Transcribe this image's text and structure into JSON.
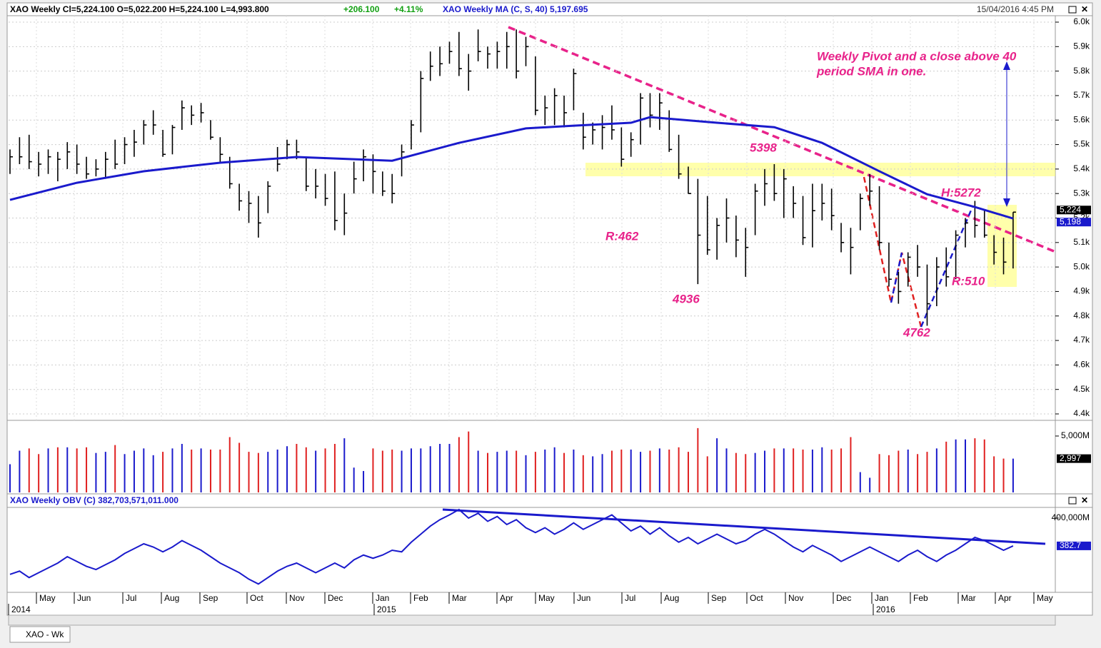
{
  "header": {
    "symbol_line": "XAO  Weekly  Cl=5,224.100  O=5,022.200  H=5,224.100  L=4,993.800",
    "change": "+206.100",
    "change_pct": "+4.11%",
    "ma_line": "XAO  Weekly  MA (C, S, 40) 5,197.695",
    "datetime": "15/04/2016 4:45 PM",
    "obv_line": "XAO  Weekly  OBV (C) 382,703,571,011.000",
    "tab": "XAO - Wk"
  },
  "chart_data": [
    {
      "type": "ohlc",
      "name": "price",
      "high": [
        5480,
        5530,
        5540,
        5470,
        5480,
        5470,
        5510,
        5500,
        5450,
        5440,
        5470,
        5520,
        5530,
        5560,
        5600,
        5640,
        5560,
        5580,
        5680,
        5660,
        5670,
        5600,
        5530,
        5450,
        5340,
        5310,
        5290,
        5350,
        5490,
        5520,
        5520,
        5450,
        5400,
        5380,
        5390,
        5300,
        5430,
        5480,
        5460,
        5390,
        5380,
        5500,
        5600,
        5800,
        5880,
        5900,
        5920,
        5960,
        5870,
        5970,
        5900,
        5920,
        5960,
        5970,
        5940,
        5860,
        5700,
        5730,
        5700,
        5810,
        5630,
        5590,
        5620,
        5660,
        5570,
        5550,
        5710,
        5710,
        5710,
        5640,
        5540,
        5410,
        5360,
        5290,
        5200,
        5280,
        5210,
        5160,
        5340,
        5400,
        5420,
        5400,
        5330,
        5290,
        5340,
        5340,
        5320,
        5180,
        5160,
        5300,
        5380,
        5330,
        5100,
        4980,
        5060,
        5090,
        5010,
        5040,
        5080,
        5150,
        5200,
        5270,
        5230,
        5130,
        5120,
        5224
      ],
      "low": [
        5380,
        5420,
        5400,
        5370,
        5380,
        5350,
        5400,
        5380,
        5360,
        5370,
        5360,
        5400,
        5420,
        5450,
        5500,
        5540,
        5450,
        5460,
        5560,
        5580,
        5590,
        5520,
        5430,
        5320,
        5230,
        5180,
        5120,
        5220,
        5390,
        5440,
        5440,
        5310,
        5280,
        5250,
        5150,
        5130,
        5300,
        5350,
        5300,
        5290,
        5260,
        5370,
        5480,
        5550,
        5760,
        5780,
        5830,
        5780,
        5720,
        5840,
        5810,
        5810,
        5810,
        5770,
        5820,
        5620,
        5580,
        5580,
        5570,
        5640,
        5480,
        5500,
        5480,
        5520,
        5410,
        5450,
        5500,
        5570,
        5560,
        5470,
        5360,
        5300,
        4930,
        5050,
        5030,
        5100,
        5040,
        4960,
        5130,
        5250,
        5270,
        5200,
        5200,
        5090,
        5080,
        5190,
        5150,
        5060,
        4970,
        5150,
        5250,
        5070,
        4920,
        4850,
        4920,
        4960,
        4760,
        4840,
        4920,
        4950,
        5080,
        5120,
        5120,
        5010,
        4970,
        4994
      ],
      "close": [
        5450,
        5450,
        5430,
        5420,
        5450,
        5440,
        5470,
        5420,
        5380,
        5400,
        5440,
        5420,
        5500,
        5510,
        5580,
        5580,
        5460,
        5570,
        5650,
        5620,
        5630,
        5530,
        5460,
        5340,
        5270,
        5260,
        5180,
        5330,
        5420,
        5500,
        5470,
        5330,
        5330,
        5280,
        5190,
        5220,
        5360,
        5450,
        5390,
        5310,
        5300,
        5470,
        5580,
        5770,
        5820,
        5830,
        5880,
        5810,
        5800,
        5880,
        5870,
        5880,
        5900,
        5800,
        5900,
        5640,
        5650,
        5700,
        5630,
        5790,
        5530,
        5560,
        5570,
        5560,
        5440,
        5520,
        5690,
        5620,
        5670,
        5480,
        5380,
        5300,
        5130,
        5070,
        5170,
        5200,
        5110,
        5080,
        5310,
        5340,
        5300,
        5360,
        5260,
        5120,
        5230,
        5260,
        5210,
        5100,
        5080,
        5280,
        5310,
        5100,
        4950,
        4900,
        5040,
        5000,
        4850,
        5000,
        4960,
        5130,
        5180,
        5170,
        5130,
        5060,
        5020,
        5224
      ],
      "color": "#000000",
      "ma": {
        "name": "MA (C, S, 40)",
        "color": "#1a1acc",
        "x": [
          0,
          7,
          14,
          22,
          30,
          40,
          47,
          54,
          59,
          65,
          67,
          74,
          80,
          85,
          91,
          96,
          101,
          105
        ],
        "values": [
          5274,
          5344,
          5391,
          5426,
          5449,
          5434,
          5507,
          5566,
          5577,
          5589,
          5612,
          5589,
          5571,
          5507,
          5391,
          5297,
          5245,
          5198
        ]
      },
      "ylim": [
        4400,
        6000
      ],
      "yticks": [
        {
          "value": 4400,
          "label": "4.4k"
        },
        {
          "value": 4500,
          "label": "4.5k"
        },
        {
          "value": 4600,
          "label": "4.6k"
        },
        {
          "value": 4700,
          "label": "4.7k"
        },
        {
          "value": 4800,
          "label": "4.8k"
        },
        {
          "value": 4900,
          "label": "4.9k"
        },
        {
          "value": 5000,
          "label": "5.0k"
        },
        {
          "value": 5100,
          "label": "5.1k"
        },
        {
          "value": 5200,
          "label": "5.2k"
        },
        {
          "value": 5300,
          "label": "5.3k"
        },
        {
          "value": 5400,
          "label": "5.4k"
        },
        {
          "value": 5500,
          "label": "5.5k"
        },
        {
          "value": 5600,
          "label": "5.6k"
        },
        {
          "value": 5700,
          "label": "5.7k"
        },
        {
          "value": 5800,
          "label": "5.8k"
        },
        {
          "value": 5900,
          "label": "5.9k"
        },
        {
          "value": 6000,
          "label": "6.0k"
        }
      ],
      "last_labels": [
        {
          "value": 5224,
          "label": "5,224"
        },
        {
          "value": 5198,
          "label": "5,198"
        }
      ],
      "annotations": [
        "Weekly Pivot and a close above 40",
        "period SMA in one.",
        "5398",
        "R:462",
        "4936",
        "H:5272",
        "4762",
        "R:510"
      ],
      "grid": true
    },
    {
      "type": "volume",
      "name": "volume",
      "values": [
        2500,
        3700,
        3900,
        3400,
        3900,
        4000,
        4000,
        3900,
        4000,
        3500,
        3600,
        4200,
        3400,
        3700,
        3900,
        3300,
        3600,
        3900,
        4300,
        3800,
        3900,
        3800,
        3800,
        4900,
        4400,
        3600,
        3500,
        3600,
        3800,
        4100,
        4300,
        4000,
        3700,
        3900,
        4300,
        4800,
        2200,
        1900,
        3900,
        3700,
        3800,
        3700,
        3900,
        3900,
        4100,
        4300,
        4300,
        4900,
        5400,
        3700,
        3500,
        3600,
        3700,
        3700,
        3300,
        3600,
        3800,
        4000,
        3500,
        3800,
        3300,
        3200,
        3400,
        3700,
        3800,
        3800,
        3600,
        3700,
        3900,
        3800,
        4000,
        3600,
        5700,
        3200,
        4800,
        3900,
        3500,
        3400,
        3500,
        3700,
        3900,
        3900,
        3900,
        3800,
        3800,
        4000,
        3800,
        3900,
        4900,
        1800,
        1300,
        3400,
        3300,
        3700,
        3800,
        3400,
        3600,
        3900,
        4500,
        4700,
        4700,
        4800,
        4700,
        3200,
        3000,
        2997
      ],
      "value_labels": {
        "105": "2,997"
      },
      "up_color": "#1a1acc",
      "down_color": "#e02020",
      "ylim": [
        0,
        6200
      ],
      "yticks": [
        {
          "value": 5000,
          "label": "5,000M"
        }
      ]
    },
    {
      "type": "line",
      "name": "OBV (C)",
      "color": "#1a1acc",
      "values": [
        365000,
        367000,
        363000,
        366000,
        369000,
        372000,
        376000,
        373000,
        370000,
        368000,
        371000,
        374000,
        378000,
        381000,
        384000,
        382000,
        379000,
        382000,
        386000,
        383000,
        380000,
        376000,
        372000,
        369000,
        366000,
        362000,
        359000,
        363000,
        367000,
        370000,
        372000,
        369000,
        366000,
        369000,
        372000,
        369000,
        374000,
        377000,
        375000,
        377000,
        380000,
        379000,
        385000,
        390000,
        395000,
        399000,
        402000,
        405300,
        400000,
        403000,
        398000,
        401000,
        396000,
        399000,
        394000,
        391000,
        394000,
        390000,
        393000,
        397000,
        393000,
        396000,
        399000,
        402000,
        397000,
        392000,
        395000,
        390000,
        394000,
        389000,
        385000,
        388000,
        384000,
        387000,
        390000,
        387000,
        384000,
        386000,
        390000,
        393000,
        390000,
        386000,
        382000,
        379000,
        383000,
        380000,
        377000,
        373000,
        376000,
        379000,
        382000,
        379000,
        376000,
        373000,
        377000,
        380000,
        376000,
        373000,
        377000,
        380000,
        384000,
        388000,
        386000,
        383000,
        380000,
        382703
      ],
      "last_label": "382.7",
      "ylim": [
        353800,
        406200
      ],
      "yticks": [
        {
          "value": 400000,
          "label": "400,000M"
        }
      ]
    },
    {
      "type": "axis",
      "xticks": [
        "May",
        "Jun",
        "Jul",
        "Aug",
        "Sep",
        "Oct",
        "Nov",
        "Dec",
        "Jan",
        "Feb",
        "Mar",
        "Apr",
        "May",
        "Jun",
        "Jul",
        "Aug",
        "Sep",
        "Oct",
        "Nov",
        "Dec",
        "Jan",
        "Feb",
        "Mar",
        "Apr",
        "May"
      ],
      "years": [
        "2014",
        "2015",
        "2016"
      ]
    }
  ]
}
